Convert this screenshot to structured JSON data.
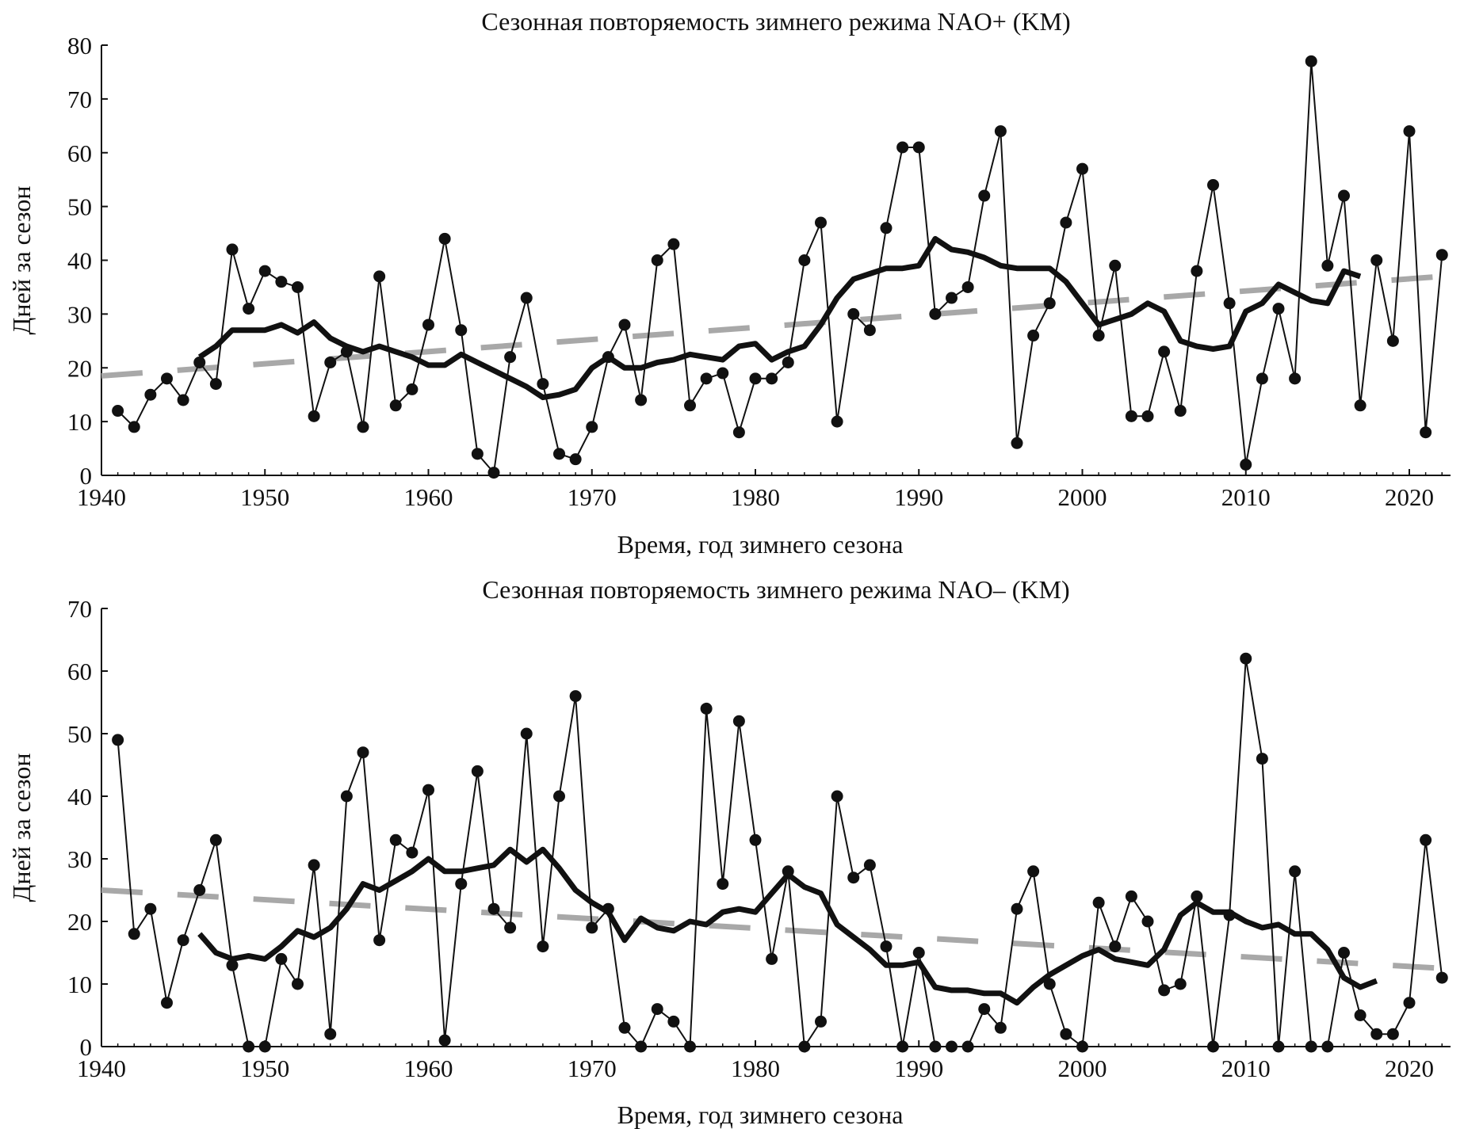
{
  "chart_data": [
    {
      "type": "line",
      "title": "Сезонная повторяемость зимнего режима NAO+ (KM)",
      "xlabel": "Время, год зимнего сезона",
      "ylabel": "Дней за сезон",
      "xlim": [
        1940,
        2022
      ],
      "ylim": [
        0,
        80
      ],
      "xticks": [
        1940,
        1950,
        1960,
        1970,
        1980,
        1990,
        2000,
        2010,
        2020
      ],
      "yticks": [
        0,
        10,
        20,
        30,
        40,
        50,
        60,
        70,
        80
      ],
      "series": [
        {
          "name": "annual",
          "style": "thin line with dots",
          "x_start": 1941,
          "values": [
            12,
            9,
            15,
            18,
            14,
            21,
            17,
            42,
            31,
            38,
            36,
            35,
            11,
            21,
            23,
            9,
            37,
            13,
            16,
            28,
            44,
            27,
            4,
            0.5,
            22,
            33,
            17,
            4,
            3,
            9,
            22,
            28,
            14,
            40,
            43,
            13,
            18,
            19,
            8,
            18,
            18,
            21,
            40,
            47,
            10,
            30,
            27,
            46,
            61,
            61,
            30,
            33,
            35,
            52,
            64,
            6,
            26,
            32,
            47,
            57,
            26,
            39,
            11,
            11,
            23,
            12,
            38,
            54,
            32,
            2,
            18,
            31,
            18,
            77,
            39,
            52,
            13,
            40,
            25,
            64,
            8,
            41
          ]
        },
        {
          "name": "moving average",
          "style": "thick line",
          "x_start": 1946,
          "values": [
            22,
            24,
            27,
            27,
            27,
            28,
            26.5,
            28.5,
            25.5,
            24,
            23,
            24,
            23,
            22,
            20.5,
            20.5,
            22.5,
            21,
            19.5,
            18,
            16.5,
            14.5,
            15,
            16,
            20,
            22,
            20,
            20,
            21,
            21.5,
            22.5,
            22,
            21.5,
            24,
            24.5,
            21.5,
            23,
            24,
            28,
            33,
            36.5,
            37.5,
            38.5,
            38.5,
            39,
            44,
            42,
            41.5,
            40.5,
            39,
            38.5,
            38.5,
            38.5,
            36,
            32,
            28,
            29,
            30,
            32,
            30.5,
            25,
            24,
            23.5,
            24,
            30.5,
            32,
            35.5,
            34,
            32.5,
            32,
            38,
            37
          ]
        },
        {
          "name": "linear trend",
          "style": "grey dashed",
          "x": [
            1940,
            2022
          ],
          "values": [
            18.5,
            37
          ]
        }
      ]
    },
    {
      "type": "line",
      "title": "Сезонная повторяемость зимнего режима NAO– (KM)",
      "xlabel": "Время, год зимнего сезона",
      "ylabel": "Дней за сезон",
      "xlim": [
        1940,
        2022
      ],
      "ylim": [
        0,
        70
      ],
      "xticks": [
        1940,
        1950,
        1960,
        1970,
        1980,
        1990,
        2000,
        2010,
        2020
      ],
      "yticks": [
        0,
        10,
        20,
        30,
        40,
        50,
        60,
        70
      ],
      "series": [
        {
          "name": "annual",
          "style": "thin line with dots",
          "x_start": 1941,
          "values": [
            49,
            18,
            22,
            7,
            17,
            25,
            33,
            13,
            0,
            0,
            14,
            10,
            29,
            2,
            40,
            47,
            17,
            33,
            31,
            41,
            1,
            26,
            44,
            22,
            19,
            50,
            16,
            40,
            56,
            19,
            22,
            3,
            0,
            6,
            4,
            0,
            54,
            26,
            52,
            33,
            14,
            28,
            0,
            4,
            40,
            27,
            29,
            16,
            0,
            15,
            0,
            0,
            0,
            6,
            3,
            22,
            28,
            10,
            2,
            0,
            23,
            16,
            24,
            20,
            9,
            10,
            24,
            0,
            21,
            62,
            46,
            0,
            28,
            0,
            0,
            15,
            5,
            2,
            2,
            7,
            33,
            11
          ]
        },
        {
          "name": "moving average",
          "style": "thick line",
          "x_start": 1946,
          "values": [
            18,
            15,
            14,
            14.5,
            14,
            16,
            18.5,
            17.5,
            19,
            22,
            26,
            25,
            26.5,
            28,
            30,
            28,
            28,
            28.5,
            29,
            31.5,
            29.5,
            31.5,
            28.5,
            25,
            23,
            21.5,
            17,
            20.5,
            19,
            18.5,
            20,
            19.5,
            21.5,
            22,
            21.5,
            24.5,
            27.5,
            25.5,
            24.5,
            19.5,
            17.5,
            15.5,
            13,
            13,
            13.5,
            9.5,
            9,
            9,
            8.5,
            8.5,
            7,
            9.5,
            11.5,
            13,
            14.5,
            15.5,
            14,
            13.5,
            13,
            15.5,
            21,
            23,
            21.5,
            21.5,
            20,
            19,
            19.5,
            18,
            18,
            15.5,
            11,
            9.5,
            10.5
          ]
        },
        {
          "name": "linear trend",
          "style": "grey dashed",
          "x": [
            1940,
            2022
          ],
          "values": [
            25,
            12.5
          ]
        }
      ]
    }
  ]
}
